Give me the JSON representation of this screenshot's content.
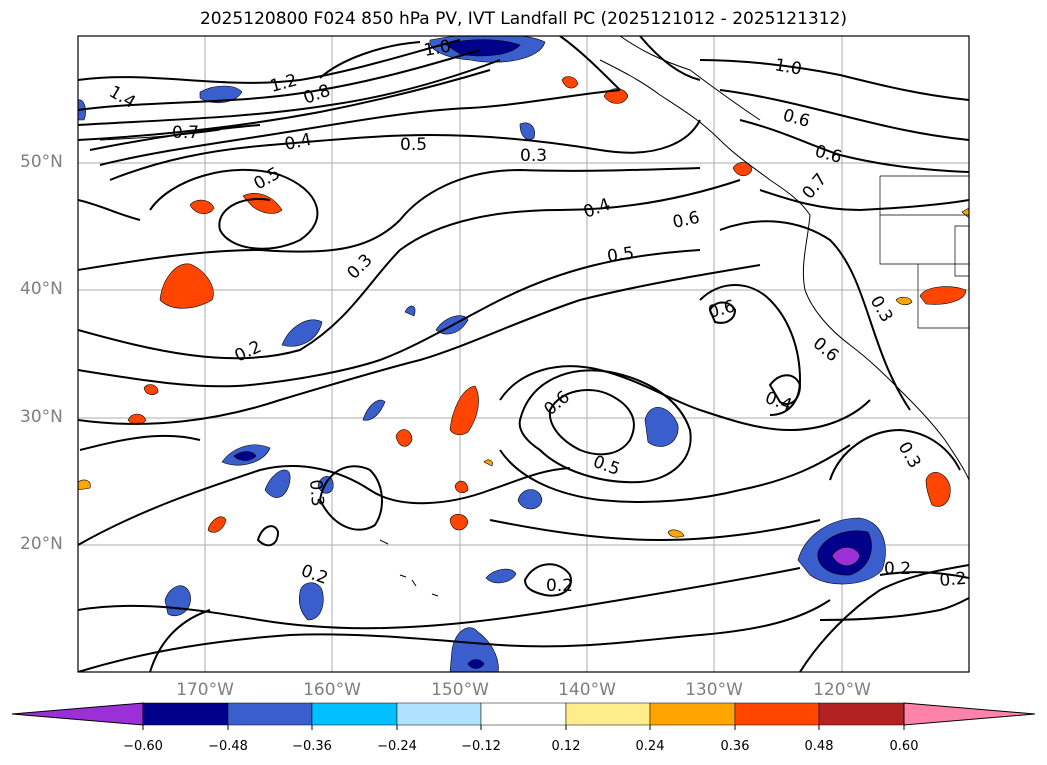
{
  "title": "2025120800 F024 850 hPa PV, IVT Landfall PC (2025121012 - 2025121312)",
  "map": {
    "projection": "PlateCarree",
    "extent": {
      "lon_min": -180,
      "lon_max": -110,
      "lat_min": 10,
      "lat_max": 60
    },
    "gridlines": true,
    "lat_labels": [
      "50°N",
      "40°N",
      "30°N",
      "20°N"
    ],
    "lon_labels": [
      "170°W",
      "160°W",
      "150°W",
      "140°W",
      "130°W",
      "120°W"
    ],
    "contour_labels": [
      "1.0",
      "1.4",
      "1.2",
      "0.8",
      "0.7",
      "0.4",
      "0.5",
      "0.5",
      "0.3",
      "0.3",
      "0.4",
      "0.6",
      "0.5",
      "0.2",
      "0.6",
      "0.6",
      "1.0",
      "0.6",
      "0.6",
      "0.7",
      "0.3",
      "0.6",
      "0.4",
      "0.5",
      "0.3",
      "0.3",
      "0.2",
      "0.2",
      "0.2",
      "0.2"
    ]
  },
  "colorbar": {
    "ticks": [
      "−0.60",
      "−0.48",
      "−0.36",
      "−0.24",
      "−0.12",
      "0.12",
      "0.24",
      "0.36",
      "0.48",
      "0.60"
    ],
    "colors": [
      "#9b30d9",
      "#00008b",
      "#3a5fcd",
      "#00bfff",
      "#b0e2ff",
      "#ffffff",
      "#ffec8b",
      "#ffa500",
      "#ff4500",
      "#b22222",
      "#ff82ab"
    ],
    "extend": "both"
  }
}
